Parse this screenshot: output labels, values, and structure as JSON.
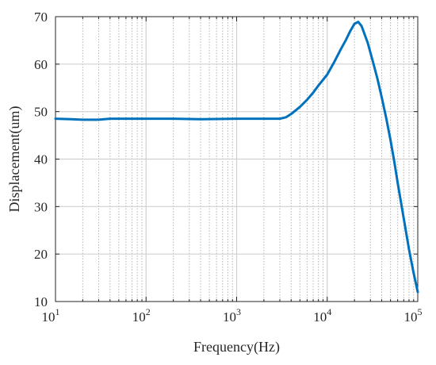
{
  "chart_data": {
    "type": "line",
    "title": "",
    "xlabel": "Frequency(Hz)",
    "ylabel": "Displacement(um)",
    "xscale": "log",
    "xlim": [
      10,
      100000
    ],
    "ylim": [
      10,
      70
    ],
    "grid": true,
    "legend": "none",
    "x_ticks": [
      {
        "base": "10",
        "exp": "1",
        "value": 10
      },
      {
        "base": "10",
        "exp": "2",
        "value": 100
      },
      {
        "base": "10",
        "exp": "3",
        "value": 1000
      },
      {
        "base": "10",
        "exp": "4",
        "value": 10000
      },
      {
        "base": "10",
        "exp": "5",
        "value": 100000
      }
    ],
    "y_ticks": [
      "10",
      "20",
      "30",
      "40",
      "50",
      "60",
      "70"
    ],
    "series": [
      {
        "color": "#0072BD",
        "x": [
          10,
          15,
          20,
          25,
          30,
          40,
          60,
          100,
          200,
          400,
          1000,
          2000,
          3000,
          3500,
          4000,
          5000,
          6000,
          7000,
          8000,
          10000,
          12000,
          14000,
          16000,
          18000,
          20000,
          22000,
          24000,
          28000,
          32000,
          36000,
          40000,
          45000,
          50000,
          55000,
          60000,
          70000,
          80000,
          90000,
          100000
        ],
        "y": [
          48.5,
          48.4,
          48.3,
          48.3,
          48.3,
          48.5,
          48.5,
          48.5,
          48.5,
          48.4,
          48.5,
          48.5,
          48.5,
          48.8,
          49.5,
          51.0,
          52.5,
          54.0,
          55.5,
          57.8,
          60.5,
          63.0,
          65.0,
          67.0,
          68.5,
          68.9,
          68.0,
          64.5,
          60.5,
          56.8,
          53.0,
          48.5,
          44.0,
          39.5,
          35.0,
          27.5,
          21.0,
          16.0,
          12.0
        ]
      }
    ]
  }
}
